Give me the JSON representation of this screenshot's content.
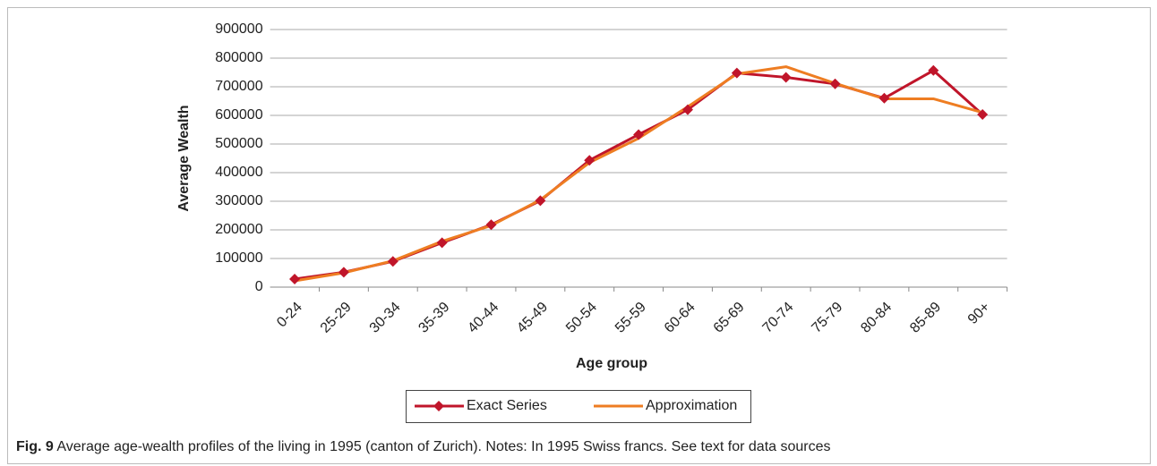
{
  "chart_data": {
    "type": "line",
    "y_label": "Average Wealth",
    "x_label": "Age group",
    "categories": [
      "0-24",
      "25-29",
      "30-34",
      "35-39",
      "40-44",
      "45-49",
      "50-54",
      "55-59",
      "60-64",
      "65-69",
      "70-74",
      "75-79",
      "80-84",
      "85-89",
      "90+"
    ],
    "series": [
      {
        "name": "Exact Series",
        "color": "#c0152a",
        "marker": "diamond",
        "values": [
          28000,
          52000,
          90000,
          155000,
          218000,
          302000,
          443000,
          533000,
          620000,
          748000,
          733000,
          710000,
          660000,
          757000,
          603000
        ]
      },
      {
        "name": "Approximation",
        "color": "#ee7d22",
        "marker": "none",
        "values": [
          22000,
          50000,
          92000,
          160000,
          215000,
          305000,
          435000,
          520000,
          630000,
          745000,
          770000,
          712000,
          658000,
          658000,
          610000
        ]
      }
    ],
    "ylim": [
      0,
      900000
    ],
    "yticks": [
      0,
      100000,
      200000,
      300000,
      400000,
      500000,
      600000,
      700000,
      800000,
      900000
    ],
    "grid": true,
    "legend": "bottom"
  },
  "caption": {
    "label": "Fig. 9",
    "text": "Average age-wealth profiles of the living in 1995 (canton of Zurich). Notes: In 1995 Swiss francs. See text for data sources"
  }
}
